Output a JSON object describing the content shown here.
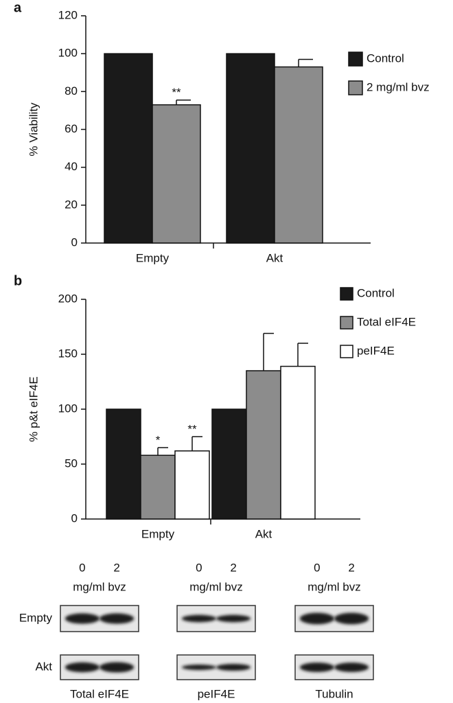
{
  "chart_data": [
    {
      "type": "bar",
      "label": "a",
      "ylabel": "% Viability",
      "categories": [
        "Empty",
        "Akt"
      ],
      "series": [
        {
          "name": "Control",
          "color": "#1a1a1a",
          "values": [
            100,
            100
          ]
        },
        {
          "name": "2 mg/ml bvz",
          "color": "#8c8c8c",
          "values": [
            73,
            93
          ],
          "errors": [
            2.5,
            4
          ],
          "significance": [
            "**",
            null
          ]
        }
      ],
      "ylim": [
        0,
        120
      ],
      "yticks": [
        0,
        20,
        40,
        60,
        80,
        100,
        120
      ],
      "legend": "right",
      "grid": false
    },
    {
      "type": "bar",
      "label": "b",
      "ylabel": "% p&t eIF4E",
      "categories": [
        "Empty",
        "Akt"
      ],
      "series": [
        {
          "name": "Control",
          "color": "#1a1a1a",
          "values": [
            100,
            100
          ]
        },
        {
          "name": "Total eIF4E",
          "color": "#8c8c8c",
          "values": [
            58,
            135
          ],
          "errors": [
            7,
            34
          ],
          "significance": [
            "*",
            null
          ]
        },
        {
          "name": "peIF4E",
          "color": "#ffffff",
          "values": [
            62,
            139
          ],
          "errors": [
            13,
            21
          ],
          "significance": [
            "**",
            null
          ]
        }
      ],
      "ylim": [
        0,
        200
      ],
      "yticks": [
        0,
        50,
        100,
        150,
        200
      ],
      "legend": "upper right",
      "grid": false
    }
  ],
  "blots": {
    "lane_labels": [
      "0",
      "2"
    ],
    "unit": "mg/ml bvz",
    "row_labels": [
      "Empty",
      "Akt"
    ],
    "panels": [
      "Total eIF4E",
      "peIF4E",
      "Tubulin"
    ]
  }
}
